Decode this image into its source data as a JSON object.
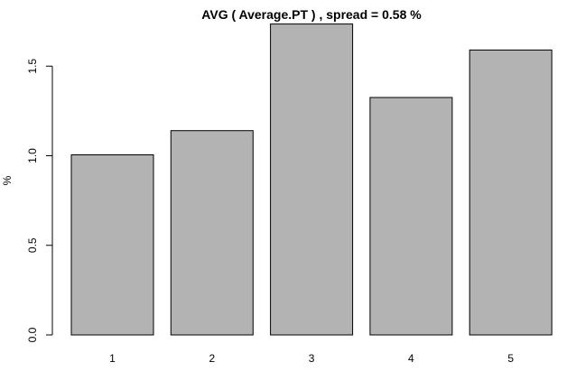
{
  "chart_data": {
    "type": "bar",
    "title": "AVG ( Average.PT ) , spread = 0.58 %",
    "xlabel": "",
    "ylabel": "%",
    "categories": [
      "1",
      "2",
      "3",
      "4",
      "5"
    ],
    "values": [
      1.005,
      1.14,
      1.735,
      1.325,
      1.59
    ],
    "ylim": [
      0,
      1.75
    ],
    "yticks": [
      0.0,
      0.5,
      1.0,
      1.5
    ],
    "ytick_labels": [
      "0.0",
      "0.5",
      "1.0",
      "1.5"
    ],
    "bar_color": "#b3b3b3",
    "grid": false
  }
}
